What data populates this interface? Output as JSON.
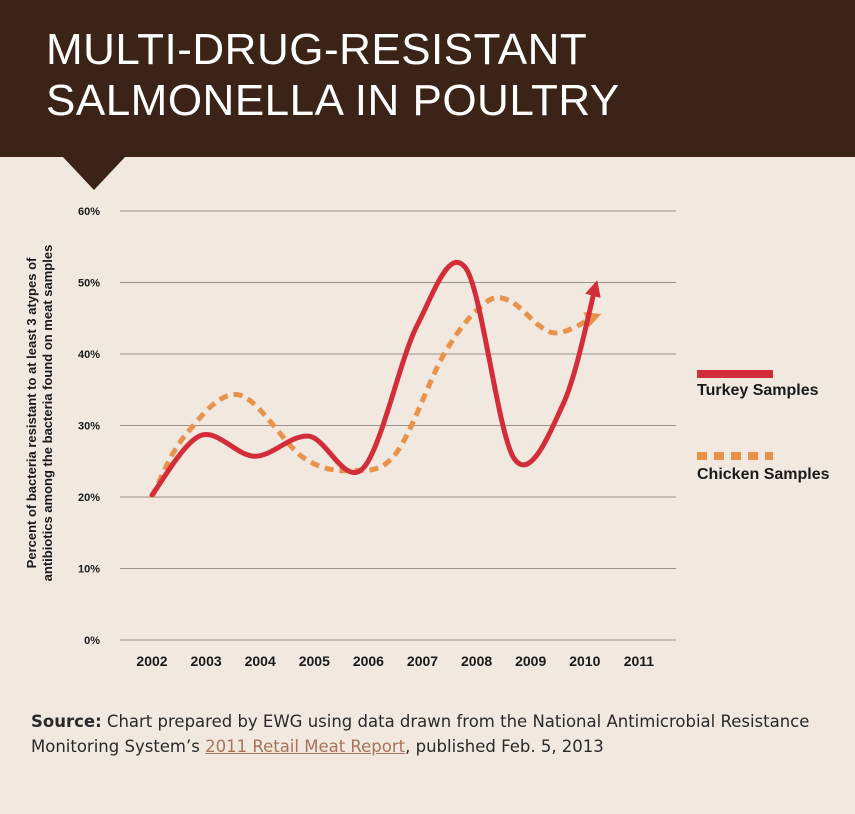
{
  "header": {
    "title_line1": "MULTI-DRUG-RESISTANT",
    "title_line2": "SALMONELLA IN POULTRY"
  },
  "source": {
    "label": "Source:",
    "text_before": " Chart prepared by EWG using data drawn from the National Antimicrobial Resistance Monitoring System’s ",
    "link_text": "2011 Retail Meat Report",
    "text_after": ", published Feb. 5, 2013"
  },
  "colors": {
    "turkey": "#d42d3a",
    "chicken": "#e8924a",
    "header_bg": "#3b2318",
    "page_bg": "#f1e8df"
  },
  "chart_data": {
    "type": "line",
    "title": "",
    "ylabel_line1": "Percent of bacteria resistant to at least 3 atypes of",
    "ylabel_line2": "antibiotics among the bacteria found on meat samples",
    "xlabel": "",
    "x": [
      "2002",
      "2003",
      "2004",
      "2005",
      "2006",
      "2007",
      "2008",
      "2009",
      "2010",
      "2011"
    ],
    "yticks": [
      "0%",
      "10%",
      "20%",
      "30%",
      "40%",
      "50%",
      "60%"
    ],
    "ylim": [
      0,
      60
    ],
    "grid": true,
    "legend": "right",
    "series": [
      {
        "name": "Turkey Samples",
        "style": "solid",
        "points": [
          [
            2002.0,
            20.3
          ],
          [
            2002.9,
            28.6
          ],
          [
            2003.9,
            25.7
          ],
          [
            2004.9,
            28.5
          ],
          [
            2005.9,
            24.0
          ],
          [
            2006.9,
            44.0
          ],
          [
            2007.8,
            52.0
          ],
          [
            2008.7,
            25.3
          ],
          [
            2009.6,
            33.0
          ],
          [
            2010.2,
            49.5
          ]
        ]
      },
      {
        "name": "Chicken Samples",
        "style": "dashed",
        "points": [
          [
            2002.0,
            20.0
          ],
          [
            2002.6,
            28.5
          ],
          [
            2003.6,
            34.3
          ],
          [
            2004.8,
            25.5
          ],
          [
            2005.7,
            23.7
          ],
          [
            2006.5,
            26.0
          ],
          [
            2007.4,
            40.0
          ],
          [
            2008.1,
            46.8
          ],
          [
            2008.6,
            47.5
          ],
          [
            2009.4,
            43.0
          ],
          [
            2010.2,
            45.3
          ]
        ]
      }
    ]
  }
}
